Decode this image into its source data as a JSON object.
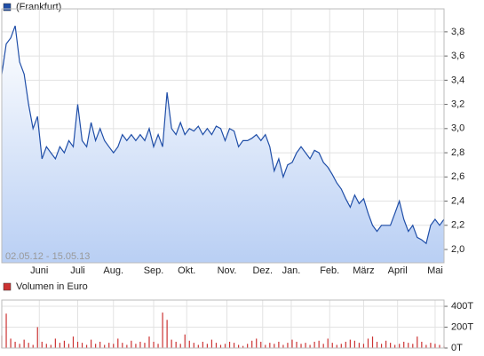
{
  "chart_data": [
    {
      "type": "line",
      "legend": "(Frankfurt)",
      "date_range": "02.05.12 - 15.05.13",
      "color": "#1f4ea8",
      "values": [
        3.45,
        3.7,
        3.75,
        3.85,
        3.55,
        3.45,
        3.2,
        3.0,
        3.1,
        2.75,
        2.85,
        2.8,
        2.75,
        2.85,
        2.8,
        2.9,
        2.85,
        3.2,
        2.9,
        2.85,
        3.05,
        2.9,
        3.0,
        2.9,
        2.85,
        2.8,
        2.85,
        2.95,
        2.9,
        2.95,
        2.9,
        2.95,
        2.9,
        3.0,
        2.85,
        2.95,
        2.85,
        3.3,
        3.0,
        2.95,
        3.05,
        2.95,
        3.0,
        2.98,
        3.02,
        2.95,
        3.0,
        2.95,
        3.02,
        3.0,
        2.9,
        3.0,
        2.98,
        2.85,
        2.9,
        2.9,
        2.92,
        2.95,
        2.9,
        2.95,
        2.85,
        2.65,
        2.75,
        2.6,
        2.7,
        2.72,
        2.8,
        2.85,
        2.8,
        2.75,
        2.82,
        2.8,
        2.72,
        2.68,
        2.62,
        2.55,
        2.5,
        2.42,
        2.35,
        2.45,
        2.38,
        2.42,
        2.3,
        2.2,
        2.15,
        2.2,
        2.2,
        2.2,
        2.3,
        2.4,
        2.25,
        2.15,
        2.2,
        2.1,
        2.08,
        2.05,
        2.2,
        2.25,
        2.2,
        2.25
      ],
      "xlim": [
        0,
        99
      ],
      "xticks": [
        {
          "value": 8.4,
          "label": "Juni"
        },
        {
          "value": 17,
          "label": "Juli"
        },
        {
          "value": 25,
          "label": "Aug."
        },
        {
          "value": 34,
          "label": "Sep."
        },
        {
          "value": 41.4,
          "label": "Okt."
        },
        {
          "value": 50.4,
          "label": "Nov."
        },
        {
          "value": 58.4,
          "label": "Dez."
        },
        {
          "value": 64.8,
          "label": "Jan."
        },
        {
          "value": 73.4,
          "label": "Feb."
        },
        {
          "value": 81,
          "label": "März"
        },
        {
          "value": 88.6,
          "label": "April"
        },
        {
          "value": 97,
          "label": "Mai"
        }
      ],
      "ylim": [
        1.89,
        3.99
      ],
      "yticks": [
        {
          "value": 2.0,
          "label": "2,0"
        },
        {
          "value": 2.2,
          "label": "2,2"
        },
        {
          "value": 2.4,
          "label": "2,4"
        },
        {
          "value": 2.6,
          "label": "2,6"
        },
        {
          "value": 2.8,
          "label": "2,8"
        },
        {
          "value": 3.0,
          "label": "3,0"
        },
        {
          "value": 3.2,
          "label": "3,2"
        },
        {
          "value": 3.4,
          "label": "3,4"
        },
        {
          "value": 3.6,
          "label": "3,6"
        },
        {
          "value": 3.8,
          "label": "3,8"
        }
      ],
      "grid": true
    },
    {
      "type": "bar",
      "legend": "Volumen in Euro",
      "color": "#cc3333",
      "values": [
        120,
        330,
        90,
        60,
        40,
        80,
        50,
        30,
        200,
        60,
        40,
        30,
        90,
        50,
        70,
        40,
        110,
        60,
        50,
        30,
        80,
        40,
        60,
        30,
        50,
        40,
        90,
        50,
        30,
        70,
        40,
        60,
        50,
        110,
        60,
        40,
        340,
        270,
        80,
        60,
        40,
        130,
        70,
        50,
        30,
        60,
        40,
        80,
        50,
        30,
        40,
        60,
        50,
        30,
        20,
        40,
        70,
        90,
        60,
        30,
        50,
        40,
        60,
        30,
        50,
        80,
        60,
        40,
        50,
        30,
        60,
        70,
        40,
        90,
        50,
        30,
        40,
        60,
        80,
        70,
        50,
        40,
        90,
        110,
        60,
        40,
        70,
        50,
        30,
        40,
        60,
        50,
        40,
        110,
        60,
        30,
        50,
        40,
        30,
        20
      ],
      "xlim": [
        0,
        99
      ],
      "ylim": [
        0,
        460
      ],
      "yticks": [
        {
          "value": 0,
          "label": "0T"
        },
        {
          "value": 200,
          "label": "200T"
        },
        {
          "value": 400,
          "label": "400T"
        }
      ],
      "grid": true
    }
  ]
}
